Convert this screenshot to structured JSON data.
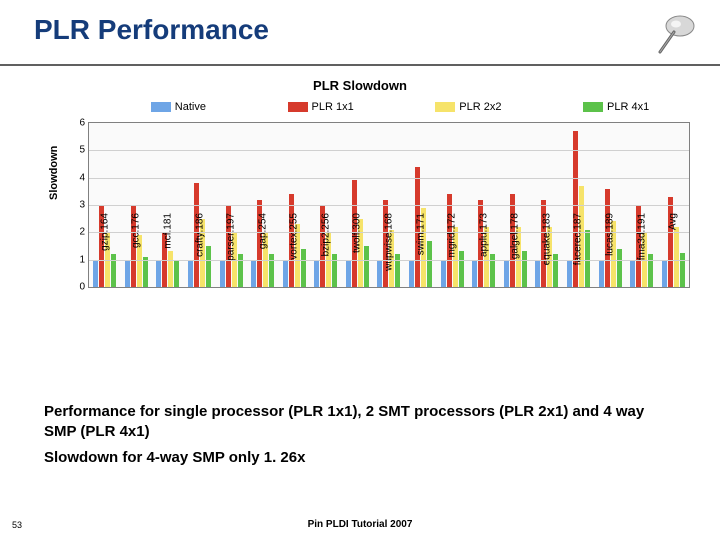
{
  "title": "PLR Performance",
  "chart": {
    "type": "bar",
    "title": "PLR Slowdown",
    "ylabel": "Slowdown",
    "ylim": [
      0,
      6
    ],
    "ytick_step": 1,
    "background_color": "#fafafa",
    "grid_color": "#d0d0d0",
    "axis_color": "#808080",
    "title_fontsize": 13,
    "label_fontsize": 11,
    "tick_fontsize": 10,
    "bar_group_gap": 0.24,
    "series": [
      {
        "name": "Native",
        "color": "#6ea5e6"
      },
      {
        "name": "PLR 1x1",
        "color": "#d63a2c"
      },
      {
        "name": "PLR 2x2",
        "color": "#f6e36a"
      },
      {
        "name": "PLR 4x1",
        "color": "#5cc24a"
      }
    ],
    "categories": [
      "164.gzip",
      "176.gcc",
      "181.mcf",
      "186.crafty",
      "197.parser",
      "254.gap",
      "255.vortex",
      "256.bzip2",
      "300.twolf",
      "168.wupwise",
      "171.swim",
      "172.mgrid",
      "173.applu",
      "178.galgel",
      "183.equake",
      "187.facerec",
      "189.lucas",
      "191.fma3d",
      "Avg"
    ],
    "values": {
      "Native": [
        1,
        1,
        1,
        1,
        1,
        1,
        1,
        1,
        1,
        1,
        1,
        1,
        1,
        1,
        1,
        1,
        1,
        1,
        1
      ],
      "PLR 1x1": [
        3.0,
        3.0,
        2.0,
        3.8,
        3.0,
        3.2,
        3.4,
        3.0,
        3.9,
        3.2,
        4.4,
        3.4,
        3.2,
        3.4,
        3.2,
        5.7,
        3.6,
        3.0,
        3.3
      ],
      "PLR 2x2": [
        2.0,
        1.9,
        1.3,
        2.5,
        2.0,
        2.0,
        2.3,
        2.0,
        2.5,
        2.1,
        2.9,
        2.2,
        2.2,
        2.2,
        2.2,
        3.7,
        2.4,
        2.0,
        2.2
      ],
      "PLR 4x1": [
        1.2,
        1.1,
        1.0,
        1.5,
        1.2,
        1.2,
        1.4,
        1.2,
        1.5,
        1.2,
        1.7,
        1.3,
        1.2,
        1.3,
        1.2,
        2.1,
        1.4,
        1.2,
        1.26
      ]
    }
  },
  "body": {
    "line1": "Performance for single processor (PLR 1x1), 2 SMT processors (PLR 2x1) and 4 way SMP (PLR 4x1)",
    "line2": "Slowdown for 4-way SMP only 1. 26x"
  },
  "footer": {
    "page": "53",
    "center": "Pin PLDI Tutorial 2007"
  },
  "colors": {
    "title": "#153c7a",
    "rule": "#606060",
    "body": "#000000"
  }
}
